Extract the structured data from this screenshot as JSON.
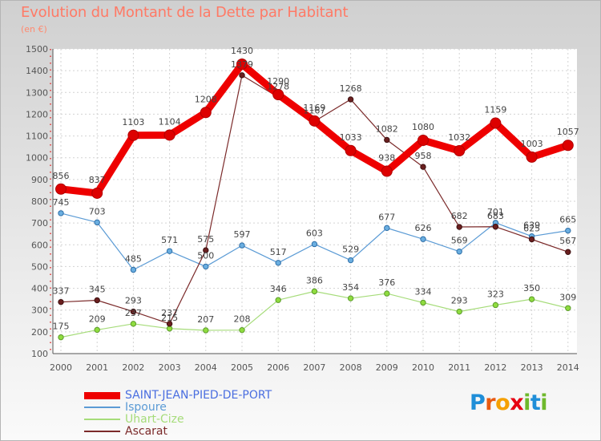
{
  "chart_data": {
    "type": "line",
    "title": "Evolution du Montant de la Dette par Habitant",
    "subtitle": "(en €)",
    "xlabel": "",
    "ylabel": "",
    "ylim": [
      100,
      1500
    ],
    "yticks": [
      100,
      200,
      300,
      400,
      500,
      600,
      700,
      800,
      900,
      1000,
      1100,
      1200,
      1300,
      1400,
      1500
    ],
    "grid": true,
    "legend_position": "bottom",
    "categories": [
      "2000",
      "2001",
      "2002",
      "2003",
      "2004",
      "2005",
      "2006",
      "2007",
      "2008",
      "2009",
      "2010",
      "2011",
      "2012",
      "2013",
      "2014"
    ],
    "series": [
      {
        "name": "SAINT-JEAN-PIED-DE-PORT",
        "color": "#ee0000",
        "values": [
          856,
          837,
          1103,
          1104,
          1208,
          1430,
          1290,
          1169,
          1033,
          938,
          1080,
          1032,
          1159,
          1003,
          1057
        ]
      },
      {
        "name": "Ispoure",
        "color": "#5b9bd5",
        "values": [
          745,
          703,
          485,
          571,
          500,
          597,
          517,
          603,
          529,
          677,
          626,
          569,
          701,
          639,
          665
        ]
      },
      {
        "name": "Uhart-Cize",
        "color": "#a6dc7a",
        "values": [
          175,
          209,
          237,
          215,
          207,
          208,
          346,
          386,
          354,
          376,
          334,
          293,
          323,
          350,
          309
        ]
      },
      {
        "name": "Ascarat",
        "color": "#7b2a2a",
        "values": [
          337,
          345,
          293,
          237,
          575,
          1379,
          1278,
          1167,
          1268,
          1082,
          958,
          682,
          683,
          625,
          567
        ]
      }
    ]
  },
  "logo": {
    "text": "Proxiti",
    "letters": [
      "P",
      "r",
      "o",
      "x",
      "i",
      "t",
      "i"
    ],
    "colors": [
      "#1f8ed8",
      "#e85a10",
      "#f5a000",
      "#e60012",
      "#6fb92c",
      "#1f8ed8",
      "#6fb92c"
    ]
  }
}
